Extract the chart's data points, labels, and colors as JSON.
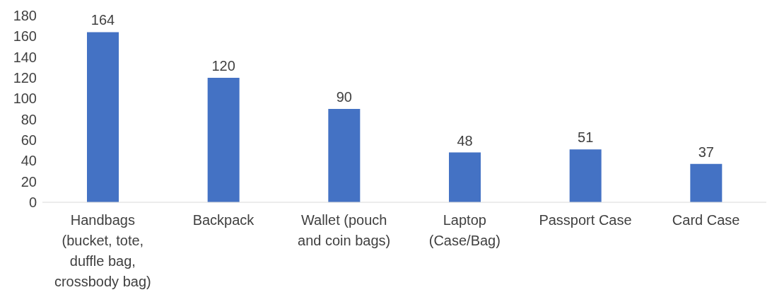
{
  "chart_data": {
    "type": "bar",
    "categories": [
      "Handbags (bucket, tote, duffle bag, crossbody bag)",
      "Backpack",
      "Wallet (pouch and coin bags)",
      "Laptop (Case/Bag)",
      "Passport Case",
      "Card Case"
    ],
    "values": [
      164,
      120,
      90,
      48,
      51,
      37
    ],
    "color": "#4472c4",
    "ylim": [
      0,
      180
    ],
    "yticks": [
      0,
      20,
      40,
      60,
      80,
      100,
      120,
      140,
      160,
      180
    ],
    "grid": false,
    "data_labels": true
  }
}
